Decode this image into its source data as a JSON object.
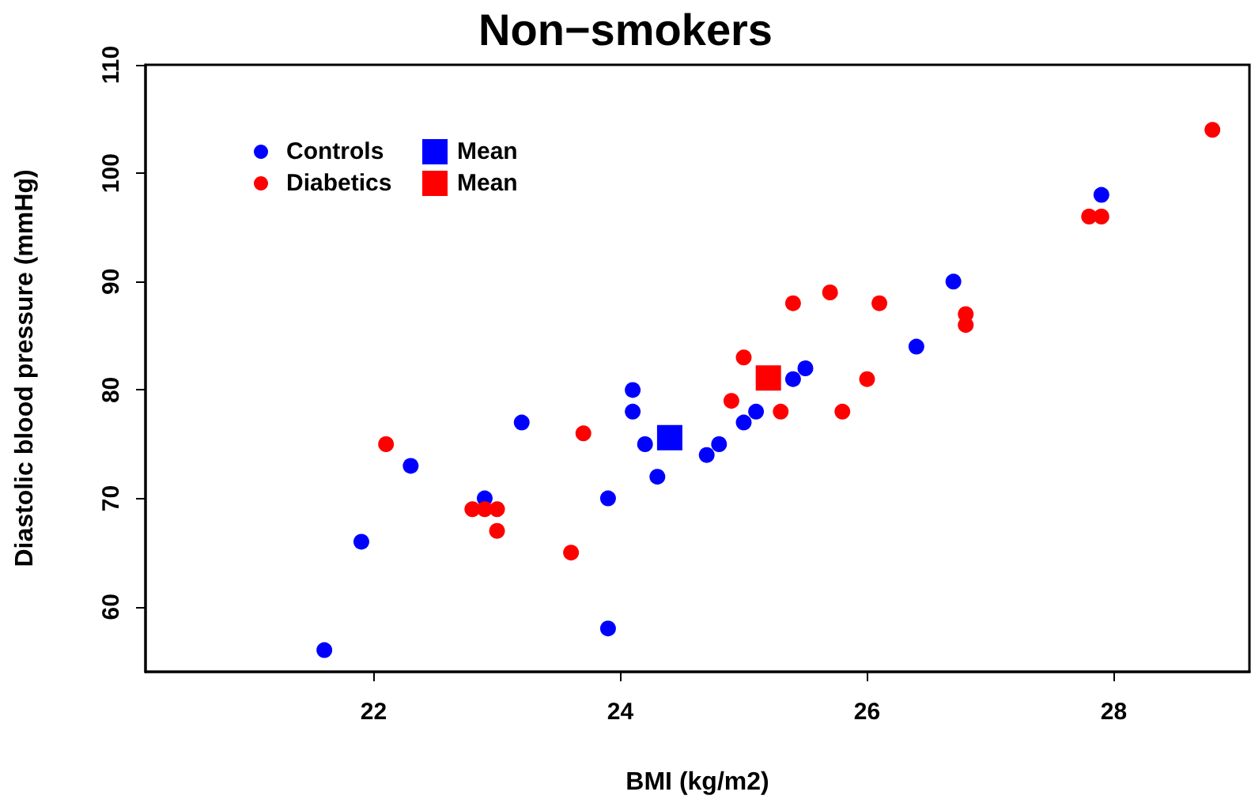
{
  "chart_data": {
    "type": "scatter",
    "title": "Non−smokers",
    "xlabel": "BMI (kg/m2)",
    "ylabel": "Diastolic blood pressure (mmHg)",
    "xlim": [
      20.15,
      29.1
    ],
    "xticks": [
      22,
      24,
      26,
      28
    ],
    "ylim": [
      54,
      110
    ],
    "yticks": [
      60,
      70,
      80,
      90,
      100,
      110
    ],
    "grid": false,
    "legend": "top left",
    "marker": "circle",
    "series": [
      {
        "name": "Controls",
        "color": "#0000ff",
        "x": [
          21.6,
          21.9,
          22.3,
          22.9,
          23.2,
          23.9,
          23.9,
          24.1,
          24.1,
          24.2,
          24.3,
          24.7,
          24.8,
          25.0,
          25.1,
          25.4,
          25.5,
          26.4,
          26.7,
          27.9
        ],
        "values": [
          56,
          66,
          73,
          70,
          77,
          58,
          70,
          80,
          78,
          75,
          72,
          74,
          75,
          77,
          78,
          81,
          82,
          84,
          90,
          98
        ]
      },
      {
        "name": "Diabetics",
        "color": "#ff0000",
        "x": [
          22.1,
          22.8,
          22.9,
          23.0,
          23.0,
          23.6,
          23.7,
          24.9,
          25.0,
          25.3,
          25.4,
          25.7,
          26.1,
          26.0,
          25.8,
          26.8,
          26.8,
          27.8,
          27.9,
          28.8
        ],
        "values": [
          75,
          69,
          69,
          69,
          67,
          65,
          76,
          79,
          83,
          78,
          88,
          89,
          88,
          81,
          78,
          87,
          86,
          96,
          96,
          104
        ]
      },
      {
        "name": "Mean",
        "color": "#0000ff",
        "marker": "square",
        "x": [
          24.4
        ],
        "values": [
          75.6
        ]
      },
      {
        "name": "Mean",
        "color": "#ff0000",
        "marker": "square",
        "x": [
          25.2
        ],
        "values": [
          81.1
        ]
      }
    ]
  }
}
